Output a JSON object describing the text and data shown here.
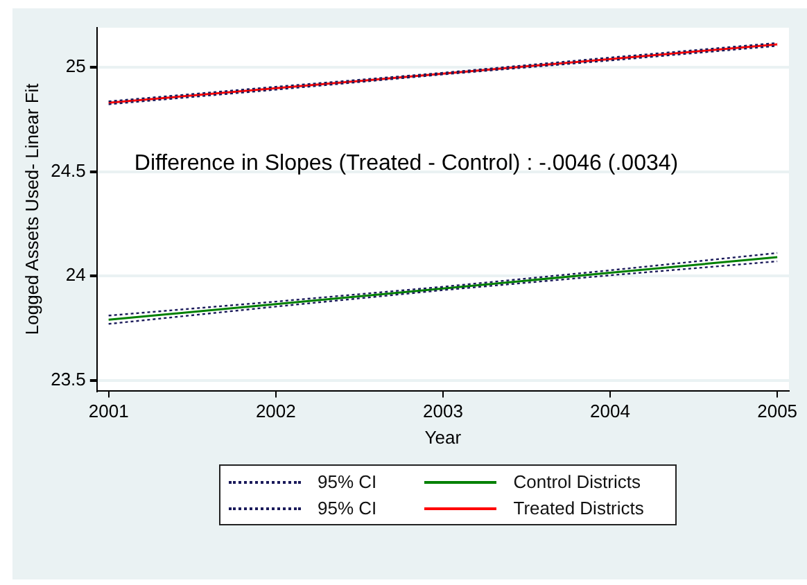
{
  "chart_data": {
    "type": "line",
    "xlabel": "Year",
    "ylabel": "Logged Assets Used- Linear Fit",
    "x": [
      2001,
      2002,
      2003,
      2004,
      2005
    ],
    "xlim": [
      2000.93,
      2005.07
    ],
    "xticks": [
      2001,
      2002,
      2003,
      2004,
      2005
    ],
    "ylim": [
      23.45,
      25.19
    ],
    "yticks": [
      23.5,
      24,
      24.5,
      25
    ],
    "grid": "y",
    "legend": "bottom",
    "marker": "none",
    "annotations": [
      "Difference in Slopes (Treated - Control) : -.0046 (.0034)"
    ],
    "series": [
      {
        "name": "95% CI",
        "color": "#1a1a5a",
        "line_style": "dotted",
        "values": [
          23.81,
          23.877,
          23.948,
          24.027,
          24.11
        ]
      },
      {
        "color": "#1a1a5a",
        "line_style": "dotted",
        "values": [
          23.77,
          23.853,
          23.932,
          24.003,
          24.07
        ]
      },
      {
        "name": "Control Districts",
        "color": "#008000",
        "line_style": "solid",
        "values": [
          23.79,
          23.865,
          23.94,
          24.015,
          24.09
        ]
      },
      {
        "name": "95% CI",
        "color": "#1a1a5a",
        "line_style": "dotted",
        "values": [
          24.837,
          24.907,
          24.974,
          25.047,
          25.117
        ]
      },
      {
        "color": "#1a1a5a",
        "line_style": "dotted",
        "values": [
          24.823,
          24.893,
          24.966,
          25.033,
          25.103
        ]
      },
      {
        "name": "Treated Districts",
        "color": "#ff0000",
        "line_style": "solid",
        "values": [
          24.83,
          24.9,
          24.97,
          25.04,
          25.11
        ]
      }
    ]
  }
}
